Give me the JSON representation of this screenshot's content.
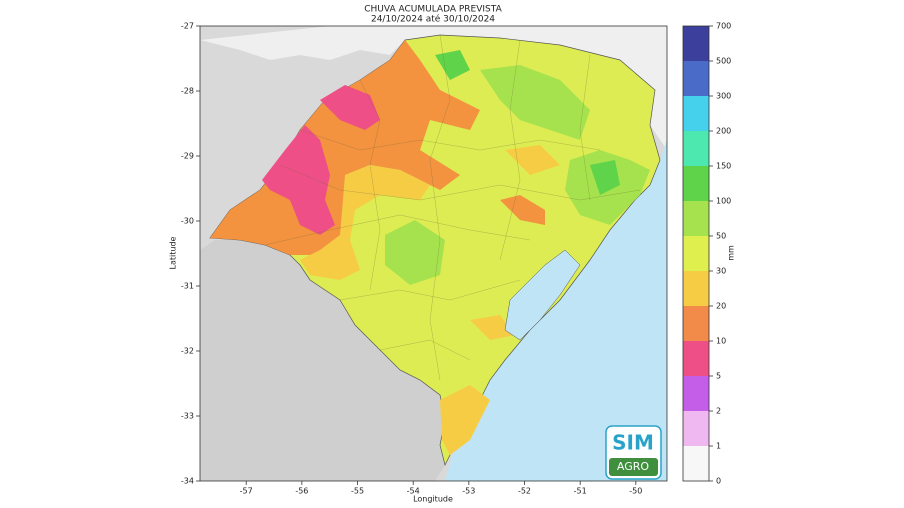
{
  "title": "CHUVA ACUMULADA PREVISTA",
  "subtitle": "24/10/2024 até 30/10/2024",
  "map": {
    "xlabel": "Longitude",
    "ylabel": "Latitude",
    "xlim": [
      -57.83,
      -49.44
    ],
    "ylim": [
      -34,
      -27
    ],
    "xticks": [
      -57,
      -56,
      -55,
      -54,
      -53,
      -52,
      -51,
      -50
    ],
    "yticks": [
      -27,
      -28,
      -29,
      -30,
      -31,
      -32,
      -33,
      -34
    ]
  },
  "colorbar": {
    "unit": "mm",
    "levels": [
      0,
      1,
      2,
      5,
      10,
      20,
      30,
      50,
      100,
      150,
      200,
      300,
      500,
      700
    ],
    "colors": [
      "#f7f7f7",
      "#f0b8f0",
      "#c45ee8",
      "#ee4f86",
      "#f28a4a",
      "#f7cc45",
      "#dff04e",
      "#a6e24e",
      "#5fd44a",
      "#4de8b0",
      "#45d0ec",
      "#4a6bc8",
      "#3d3f9c"
    ]
  },
  "logo": {
    "top": "SIM",
    "bottom": "AGRO"
  }
}
